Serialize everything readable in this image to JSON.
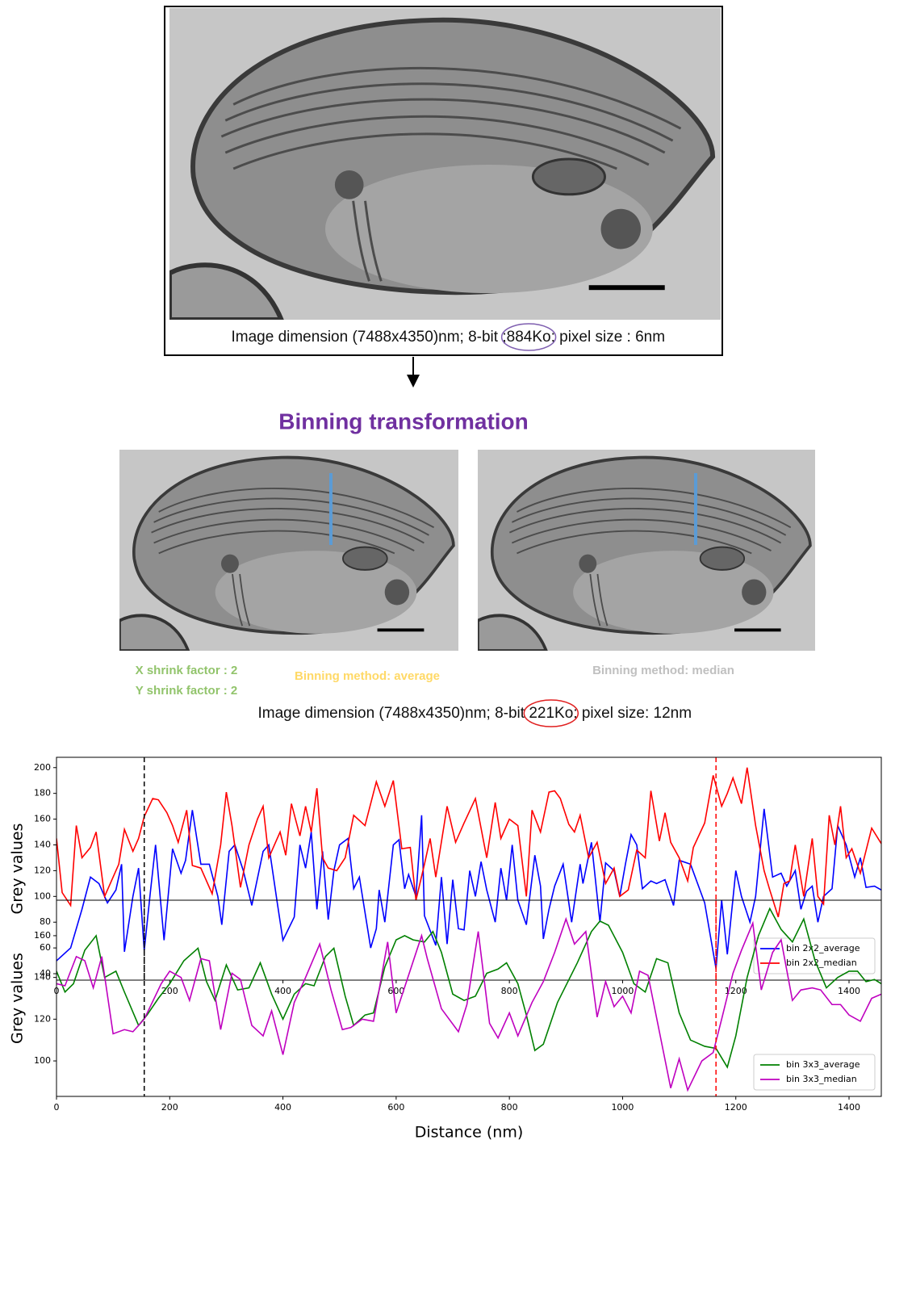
{
  "top_panel": {
    "caption": [
      "Image dimension (7488x4350)nm; 8-bit ;",
      "884Ko",
      "; pixel size : 6nm"
    ]
  },
  "binning": {
    "title": "Binning transformation",
    "x_shrink": "X shrink factor : 2",
    "y_shrink": "Y shrink factor : 2",
    "average_label": "Binning method: average",
    "median_label": "Binning method: median",
    "caption": [
      "Image dimension (7488x4350)nm; 8-bit ",
      "221Ko",
      "; pixel size: 12nm"
    ]
  },
  "chart_data": [
    {
      "type": "line",
      "y_label": "Grey values",
      "xlim": [
        0,
        1457
      ],
      "ylim": [
        35,
        208
      ],
      "xticks": [
        0,
        200,
        400,
        600,
        800,
        1000,
        1200,
        1400
      ],
      "yticks": [
        40,
        60,
        80,
        100,
        120,
        140,
        160,
        180,
        200
      ],
      "legend": "lower right",
      "vlines": [
        {
          "x": 155,
          "color": "#000000"
        },
        {
          "x": 1165,
          "color": "#ff0000"
        }
      ],
      "series": [
        {
          "name": "bin 2x2_average",
          "color": "#0000ff",
          "x": [
            0,
            25,
            45,
            60,
            75,
            90,
            105,
            115,
            120,
            135,
            145,
            155,
            165,
            175,
            190,
            205,
            220,
            228,
            240,
            255,
            270,
            285,
            292,
            305,
            315,
            330,
            345,
            365,
            375,
            390,
            400,
            420,
            430,
            440,
            450,
            460,
            470,
            480,
            490,
            500,
            515,
            525,
            535,
            555,
            565,
            570,
            580,
            595,
            605,
            615,
            622,
            635,
            645,
            650,
            670,
            680,
            690,
            700,
            710,
            720,
            730,
            740,
            750,
            760,
            775,
            785,
            795,
            805,
            815,
            830,
            845,
            855,
            860,
            870,
            880,
            895,
            910,
            925,
            930,
            945,
            960,
            970,
            985,
            995,
            1005,
            1015,
            1025,
            1035,
            1050,
            1060,
            1075,
            1090,
            1100,
            1120,
            1145,
            1165,
            1175,
            1185,
            1200,
            1210,
            1225,
            1235,
            1250,
            1265,
            1280,
            1290,
            1305,
            1315,
            1325,
            1335,
            1345,
            1355,
            1370,
            1380,
            1395,
            1410,
            1420,
            1430,
            1445,
            1457
          ],
          "values": [
            50,
            60,
            90,
            115,
            110,
            95,
            105,
            125,
            57,
            100,
            122,
            58,
            100,
            140,
            66,
            137,
            118,
            128,
            167,
            125,
            125,
            100,
            78,
            135,
            140,
            120,
            93,
            135,
            140,
            95,
            66,
            84,
            140,
            122,
            150,
            90,
            135,
            82,
            120,
            140,
            145,
            106,
            115,
            60,
            75,
            105,
            80,
            140,
            144,
            106,
            117,
            100,
            163,
            85,
            62,
            115,
            63,
            113,
            75,
            74,
            120,
            100,
            127,
            105,
            80,
            122,
            97,
            140,
            97,
            78,
            132,
            108,
            67,
            90,
            108,
            125,
            80,
            125,
            110,
            142,
            80,
            126,
            120,
            100,
            125,
            148,
            140,
            106,
            112,
            110,
            113,
            93,
            128,
            125,
            95,
            44,
            97,
            55,
            120,
            100,
            80,
            100,
            168,
            115,
            118,
            108,
            120,
            90,
            104,
            108,
            80,
            100,
            106,
            155,
            140,
            115,
            130,
            107,
            108,
            105
          ]
        },
        {
          "name": "bin 2x2_median",
          "color": "#ff0000",
          "x": [
            0,
            10,
            25,
            35,
            45,
            60,
            70,
            85,
            110,
            120,
            135,
            145,
            155,
            170,
            180,
            195,
            205,
            215,
            230,
            240,
            255,
            275,
            290,
            300,
            310,
            325,
            340,
            355,
            365,
            375,
            385,
            395,
            405,
            415,
            430,
            440,
            450,
            460,
            470,
            480,
            495,
            510,
            525,
            545,
            565,
            580,
            595,
            610,
            625,
            635,
            650,
            660,
            670,
            690,
            705,
            720,
            740,
            760,
            775,
            785,
            800,
            815,
            830,
            840,
            855,
            870,
            880,
            890,
            905,
            915,
            925,
            940,
            955,
            970,
            985,
            995,
            1010,
            1025,
            1040,
            1050,
            1065,
            1075,
            1085,
            1100,
            1115,
            1125,
            1145,
            1160,
            1175,
            1185,
            1195,
            1210,
            1220,
            1235,
            1250,
            1260,
            1275,
            1285,
            1295,
            1305,
            1320,
            1335,
            1345,
            1355,
            1365,
            1375,
            1385,
            1395,
            1405,
            1420,
            1440,
            1457
          ],
          "values": [
            145,
            103,
            93,
            155,
            130,
            138,
            150,
            100,
            125,
            152,
            135,
            145,
            162,
            176,
            175,
            165,
            155,
            142,
            167,
            124,
            122,
            102,
            140,
            181,
            155,
            107,
            140,
            160,
            170,
            130,
            140,
            150,
            132,
            172,
            147,
            170,
            150,
            184,
            130,
            122,
            120,
            130,
            163,
            155,
            189,
            170,
            190,
            137,
            138,
            97,
            125,
            145,
            115,
            170,
            142,
            157,
            176,
            130,
            173,
            145,
            160,
            155,
            100,
            167,
            150,
            181,
            182,
            176,
            156,
            150,
            163,
            130,
            142,
            110,
            122,
            100,
            105,
            136,
            130,
            182,
            143,
            165,
            142,
            130,
            112,
            138,
            157,
            194,
            170,
            180,
            192,
            172,
            200,
            155,
            120,
            105,
            84,
            110,
            112,
            140,
            100,
            145,
            100,
            94,
            163,
            140,
            170,
            130,
            137,
            118,
            153,
            141
          ]
        }
      ]
    },
    {
      "type": "line",
      "y_label": "Grey values",
      "x_label": "Distance (nm)",
      "xlim": [
        0,
        1457
      ],
      "ylim": [
        83,
        177
      ],
      "xticks": [
        0,
        200,
        400,
        600,
        800,
        1000,
        1200,
        1400
      ],
      "yticks": [
        100,
        120,
        140,
        160
      ],
      "legend": "lower right",
      "vlines": [
        {
          "x": 155,
          "color": "#000000"
        },
        {
          "x": 1165,
          "color": "#ff0000"
        }
      ],
      "series": [
        {
          "name": "bin 3x3_average",
          "color": "#008000",
          "x": [
            0,
            15,
            30,
            50,
            70,
            85,
            105,
            120,
            145,
            160,
            180,
            200,
            225,
            250,
            265,
            280,
            300,
            320,
            340,
            360,
            380,
            400,
            420,
            440,
            455,
            475,
            490,
            510,
            525,
            545,
            560,
            580,
            600,
            615,
            630,
            650,
            665,
            680,
            700,
            720,
            740,
            760,
            780,
            795,
            815,
            830,
            845,
            860,
            885,
            920,
            945,
            960,
            975,
            1000,
            1020,
            1040,
            1060,
            1080,
            1100,
            1120,
            1145,
            1165,
            1185,
            1200,
            1220,
            1240,
            1260,
            1280,
            1300,
            1320,
            1340,
            1360,
            1380,
            1400,
            1415,
            1430,
            1445,
            1457
          ],
          "values": [
            143,
            133,
            137,
            153,
            160,
            140,
            143,
            133,
            117,
            122,
            130,
            137,
            148,
            154,
            138,
            129,
            146,
            134,
            135,
            147,
            132,
            120,
            132,
            137,
            136,
            150,
            154,
            131,
            117,
            122,
            123,
            145,
            158,
            160,
            158,
            157,
            162,
            152,
            132,
            129,
            131,
            142,
            144,
            147,
            137,
            122,
            105,
            108,
            128,
            147,
            162,
            167,
            165,
            152,
            137,
            133,
            149,
            147,
            123,
            110,
            107,
            106,
            97,
            112,
            140,
            160,
            173,
            163,
            157,
            168,
            148,
            135,
            140,
            143,
            143,
            138,
            139,
            137
          ]
        },
        {
          "name": "bin 3x3_median",
          "color": "#bf00bf",
          "x": [
            0,
            15,
            35,
            50,
            65,
            80,
            100,
            120,
            135,
            155,
            185,
            200,
            220,
            235,
            255,
            270,
            290,
            310,
            325,
            345,
            365,
            380,
            400,
            420,
            440,
            465,
            485,
            505,
            520,
            540,
            560,
            585,
            600,
            645,
            655,
            680,
            710,
            725,
            745,
            765,
            780,
            800,
            815,
            840,
            860,
            880,
            900,
            915,
            935,
            955,
            970,
            985,
            1000,
            1015,
            1030,
            1045,
            1065,
            1085,
            1100,
            1115,
            1140,
            1160,
            1175,
            1195,
            1210,
            1230,
            1245,
            1265,
            1280,
            1300,
            1315,
            1335,
            1350,
            1370,
            1385,
            1400,
            1420,
            1440,
            1457
          ],
          "values": [
            137,
            136,
            150,
            148,
            135,
            150,
            113,
            115,
            114,
            120,
            137,
            143,
            140,
            129,
            149,
            148,
            115,
            142,
            139,
            117,
            112,
            124,
            103,
            128,
            140,
            156,
            134,
            115,
            116,
            120,
            119,
            157,
            123,
            160,
            149,
            125,
            114,
            127,
            162,
            118,
            111,
            123,
            112,
            128,
            138,
            152,
            168,
            156,
            162,
            121,
            138,
            126,
            131,
            123,
            143,
            141,
            114,
            87,
            101,
            86,
            100,
            104,
            120,
            142,
            153,
            166,
            134,
            152,
            158,
            129,
            134,
            135,
            134,
            127,
            127,
            122,
            119,
            130,
            132
          ]
        }
      ]
    }
  ]
}
